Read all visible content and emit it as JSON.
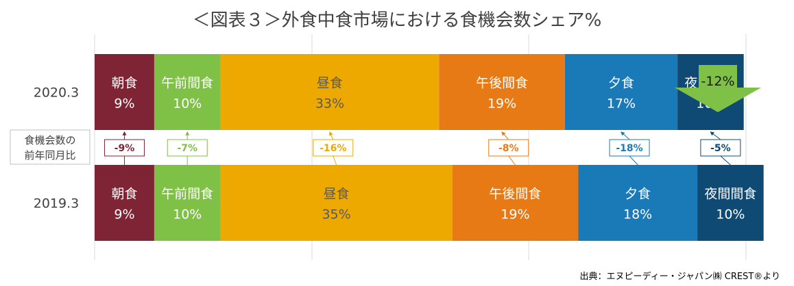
{
  "chart_data": {
    "type": "bar",
    "orientation": "horizontal-stacked",
    "title": "＜図表３＞外食中食市場における食機会数シェア%",
    "categories": [
      "朝食",
      "午前間食",
      "昼食",
      "午後間食",
      "夕食",
      "夜間間食"
    ],
    "series_colors": [
      "#7f2434",
      "#7fc046",
      "#eda900",
      "#e87a16",
      "#1a7ab8",
      "#0e4a74"
    ],
    "text_colors": [
      "#ffffff",
      "#ffffff",
      "#595959",
      "#ffffff",
      "#ffffff",
      "#ffffff"
    ],
    "rows": [
      {
        "name": "2020.3",
        "values": [
          9,
          10,
          33,
          19,
          17,
          10
        ],
        "labels": [
          "9%",
          "10%",
          "33%",
          "19%",
          "17%",
          "10%"
        ]
      },
      {
        "name": "2019.3",
        "values": [
          9,
          10,
          35,
          19,
          18,
          10
        ],
        "labels": [
          "9%",
          "10%",
          "35%",
          "19%",
          "18%",
          "10%"
        ]
      }
    ],
    "yoy_label": "食機会数の\n前年同月比",
    "yoy_changes": [
      "-9%",
      "-7%",
      "-16%",
      "-8%",
      "-18%",
      "-5%"
    ],
    "total_change": "-12%",
    "total_change_color": "#7fc046",
    "grid": true,
    "source": "出典：エヌピーディー・ジャパン㈱ CREST®より"
  }
}
